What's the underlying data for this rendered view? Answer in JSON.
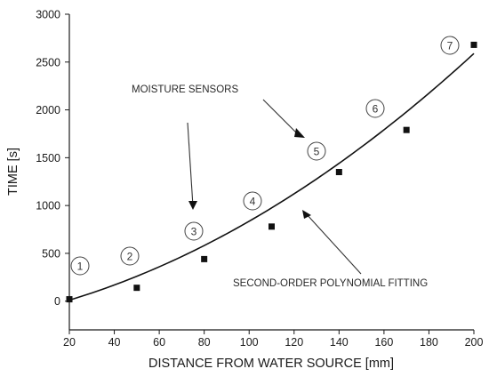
{
  "chart_data": {
    "type": "scatter",
    "xlabel": "DISTANCE FROM WATER SOURCE [mm]",
    "ylabel": "TIME [s]",
    "xlim": [
      20,
      200
    ],
    "ylim": [
      -300,
      3000
    ],
    "x_ticks": [
      "20",
      "40",
      "60",
      "80",
      "100",
      "120",
      "140",
      "160",
      "180",
      "200"
    ],
    "y_ticks": [
      "0",
      "500",
      "1000",
      "1500",
      "2000",
      "2500",
      "3000"
    ],
    "series": [
      {
        "x": [
          20,
          50,
          80,
          110,
          140,
          170,
          200
        ],
        "y": [
          20,
          140,
          440,
          780,
          1350,
          1790,
          2680
        ]
      }
    ],
    "fit": {
      "type": "second-order polynomial",
      "x": [
        20,
        200
      ],
      "coefficients": [
        -115,
        5.5,
        0.0401
      ]
    },
    "sensor_labels": [
      "1",
      "2",
      "3",
      "4",
      "5",
      "6",
      "7"
    ],
    "annotations": {
      "sensors": "MOISTURE SENSORS",
      "fit": "SECOND-ORDER POLYNOMIAL FITTING"
    }
  }
}
